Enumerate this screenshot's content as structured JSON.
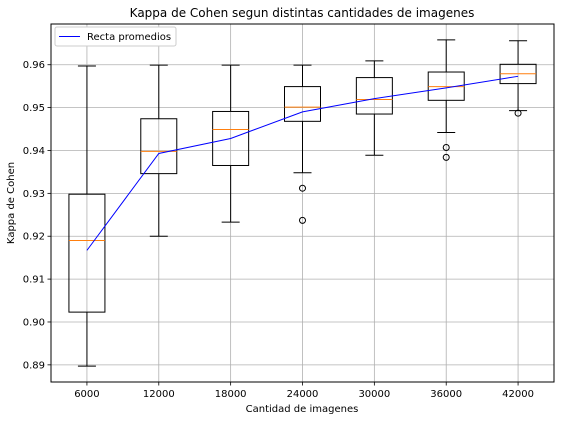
{
  "chart_data": {
    "type": "boxplot",
    "title": "Kappa de Cohen segun distintas cantidades de imagenes",
    "xlabel": "Cantidad de imagenes",
    "ylabel": "Kappa de Cohen",
    "categories": [
      "6000",
      "12000",
      "18000",
      "24000",
      "30000",
      "36000",
      "42000"
    ],
    "ylim": [
      0.886,
      0.9695
    ],
    "yticks": [
      "0.89",
      "0.90",
      "0.91",
      "0.92",
      "0.93",
      "0.94",
      "0.95",
      "0.96"
    ],
    "grid": true,
    "legend_position": "top-left",
    "boxes": [
      {
        "whislo": 0.8897,
        "q1": 0.9023,
        "med": 0.919,
        "q3": 0.9298,
        "whishi": 0.9597,
        "fliers": []
      },
      {
        "whislo": 0.92,
        "q1": 0.9346,
        "med": 0.9398,
        "q3": 0.9474,
        "whishi": 0.9599,
        "fliers": []
      },
      {
        "whislo": 0.9233,
        "q1": 0.9365,
        "med": 0.9449,
        "q3": 0.9491,
        "whishi": 0.9599,
        "fliers": []
      },
      {
        "whislo": 0.9348,
        "q1": 0.9468,
        "med": 0.9501,
        "q3": 0.9549,
        "whishi": 0.9599,
        "fliers": [
          0.9312,
          0.9237
        ]
      },
      {
        "whislo": 0.9389,
        "q1": 0.9485,
        "med": 0.9519,
        "q3": 0.957,
        "whishi": 0.9609,
        "fliers": []
      },
      {
        "whislo": 0.9442,
        "q1": 0.9517,
        "med": 0.9549,
        "q3": 0.9583,
        "whishi": 0.9658,
        "fliers": [
          0.9407,
          0.9384
        ]
      },
      {
        "whislo": 0.9493,
        "q1": 0.9556,
        "med": 0.9579,
        "q3": 0.9601,
        "whishi": 0.9656,
        "fliers": [
          0.9487
        ]
      }
    ],
    "series": [
      {
        "name": "Recta promedios",
        "values": [
          0.9167,
          0.9393,
          0.9428,
          0.949,
          0.9521,
          0.9546,
          0.9573
        ]
      }
    ],
    "colors": {
      "box": "#000000",
      "median": "#ff7f0e",
      "line": "#0000ff",
      "grid": "#b0b0b0"
    }
  }
}
